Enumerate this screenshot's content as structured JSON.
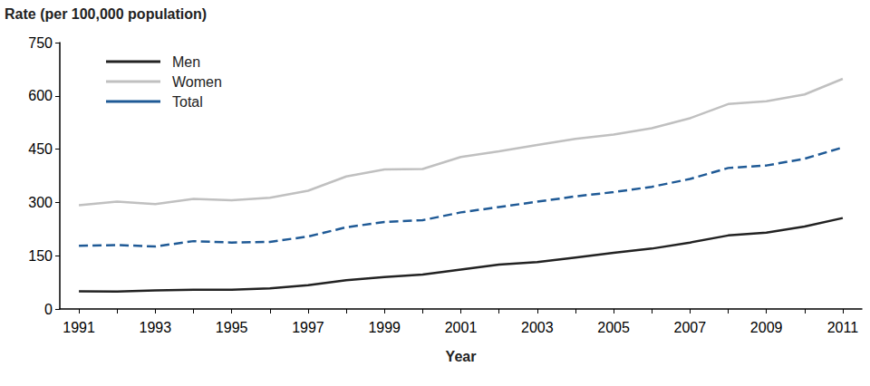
{
  "chart_data": {
    "type": "line",
    "y_label": "Rate (per 100,000 population)",
    "x_label": "Year",
    "categories": [
      "1991",
      null,
      "1993",
      null,
      "1995",
      null,
      "1997",
      null,
      "1999",
      null,
      "2001",
      null,
      "2003",
      null,
      "2005",
      null,
      "2007",
      null,
      "2009",
      null,
      "2011"
    ],
    "series": [
      {
        "name": "Men",
        "color": "#222222",
        "line_style": "solid",
        "values": [
          50,
          49,
          52,
          54,
          54,
          58,
          67,
          81,
          90,
          97,
          111,
          125,
          132,
          145,
          158,
          170,
          187,
          207,
          215,
          232,
          256
        ]
      },
      {
        "name": "Women",
        "color": "#c0c0c0",
        "line_style": "solid",
        "values": [
          292,
          302,
          295,
          310,
          306,
          313,
          333,
          373,
          393,
          394,
          428,
          444,
          462,
          479,
          491,
          509,
          537,
          577,
          585,
          604,
          648
        ]
      },
      {
        "name": "Total",
        "color": "#1f5a96",
        "line_style": "dashed",
        "values": [
          178,
          180,
          176,
          191,
          187,
          189,
          204,
          230,
          245,
          250,
          272,
          287,
          302,
          317,
          329,
          344,
          366,
          397,
          404,
          423,
          455
        ]
      }
    ],
    "ylim": [
      0,
      750
    ],
    "yticks": [
      0,
      150,
      300,
      450,
      600,
      750
    ],
    "grid": false,
    "legend": "top-left"
  }
}
